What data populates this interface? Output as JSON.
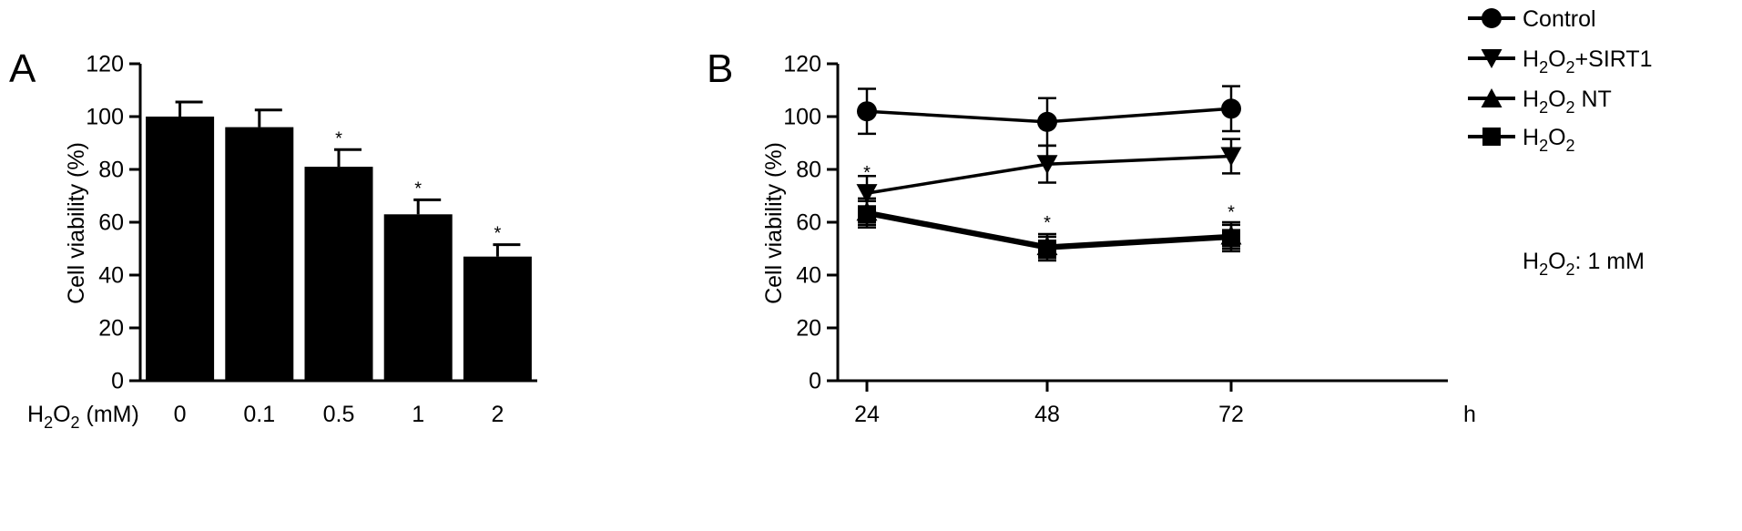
{
  "chart_data": [
    {
      "panel": "A",
      "type": "bar",
      "ylabel": "Cell viability (%)",
      "xlabel": {
        "main": "H",
        "sub": "2",
        "mid": "O",
        "sub2": "2",
        "tail": " (mM)"
      },
      "categories": [
        "0",
        "0.1",
        "0.5",
        "1",
        "2"
      ],
      "values": [
        100,
        96,
        81,
        63,
        47
      ],
      "errors": [
        5.5,
        6.5,
        6.5,
        5.5,
        4.5
      ],
      "significant": [
        false,
        false,
        true,
        true,
        true
      ],
      "marker": "*",
      "ylim": [
        0,
        120
      ],
      "yticks": [
        0,
        20,
        40,
        60,
        80,
        100,
        120
      ],
      "color": "#000000"
    },
    {
      "panel": "B",
      "type": "line",
      "ylabel": "Cell viability (%)",
      "xunit": "h",
      "x": [
        24,
        48,
        72
      ],
      "xticklabels": [
        "24",
        "48",
        "72"
      ],
      "ylim": [
        0,
        120
      ],
      "yticks": [
        0,
        20,
        40,
        60,
        80,
        100,
        120
      ],
      "series": [
        {
          "key": "control",
          "marker": "circle",
          "values": [
            102,
            98,
            103
          ],
          "errors": [
            8.5,
            9,
            8.5
          ]
        },
        {
          "key": "h2o2_sirt1",
          "marker": "triangle-down",
          "values": [
            71,
            82,
            85
          ],
          "errors": [
            6.5,
            7,
            6.5
          ]
        },
        {
          "key": "h2o2_nt",
          "marker": "triangle-up",
          "values": [
            64,
            51,
            55
          ],
          "errors": [
            5,
            4.5,
            5
          ]
        },
        {
          "key": "h2o2",
          "marker": "square",
          "values": [
            63,
            50,
            54
          ],
          "errors": [
            5,
            4.5,
            5
          ]
        }
      ],
      "significance": [
        {
          "x": 24,
          "y": 80,
          "marker": "*"
        },
        {
          "x": 48,
          "y": 61,
          "marker": "*"
        },
        {
          "x": 72,
          "y": 65,
          "marker": "*"
        }
      ]
    }
  ],
  "legend": [
    {
      "marker": "circle",
      "label": {
        "main": "Control"
      }
    },
    {
      "marker": "triangle-down",
      "label": {
        "main": "H",
        "sub": "2",
        "mid": "O",
        "sub2": "2",
        "tail": "+SIRT1"
      }
    },
    {
      "marker": "triangle-up",
      "label": {
        "main": "H",
        "sub": "2",
        "mid": "O",
        "sub2": "2",
        "tail": " NT"
      }
    },
    {
      "marker": "square",
      "label": {
        "main": "H",
        "sub": "2",
        "mid": "O",
        "sub2": "2",
        "tail": ""
      }
    }
  ],
  "note": {
    "main": "H",
    "sub": "2",
    "mid": "O",
    "sub2": "2",
    "tail": ": 1 mM"
  }
}
